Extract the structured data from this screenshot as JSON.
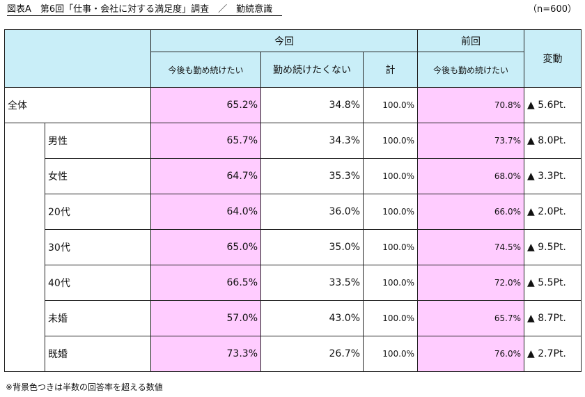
{
  "title": "図表A　第6回「仕事・会社に対する満足度」調査　／　勤続意識",
  "sample": "（n=600）",
  "header": {
    "current": "今回",
    "previous": "前回",
    "change": "変動",
    "col_continue": "今後も勤め続けたい",
    "col_not_continue": "勤め続けたくない",
    "col_total": "計",
    "col_prev_continue": "今後も勤め続けたい"
  },
  "rows": [
    {
      "label": "全体",
      "continue": "65.2%",
      "not_continue": "34.8%",
      "total": "100.0%",
      "prev": "70.8%",
      "change": "▲ 5.6Pt."
    },
    {
      "label": "男性",
      "continue": "65.7%",
      "not_continue": "34.3%",
      "total": "100.0%",
      "prev": "73.7%",
      "change": "▲ 8.0Pt."
    },
    {
      "label": "女性",
      "continue": "64.7%",
      "not_continue": "35.3%",
      "total": "100.0%",
      "prev": "68.0%",
      "change": "▲ 3.3Pt."
    },
    {
      "label": "20代",
      "continue": "64.0%",
      "not_continue": "36.0%",
      "total": "100.0%",
      "prev": "66.0%",
      "change": "▲ 2.0Pt."
    },
    {
      "label": "30代",
      "continue": "65.0%",
      "not_continue": "35.0%",
      "total": "100.0%",
      "prev": "74.5%",
      "change": "▲ 9.5Pt."
    },
    {
      "label": "40代",
      "continue": "66.5%",
      "not_continue": "33.5%",
      "total": "100.0%",
      "prev": "72.0%",
      "change": "▲ 5.5Pt."
    },
    {
      "label": "未婚",
      "continue": "57.0%",
      "not_continue": "43.0%",
      "total": "100.0%",
      "prev": "65.7%",
      "change": "▲ 8.7Pt."
    },
    {
      "label": "既婚",
      "continue": "73.3%",
      "not_continue": "26.7%",
      "total": "100.0%",
      "prev": "76.0%",
      "change": "▲ 2.7Pt."
    }
  ],
  "note": "※背景色つきは半数の回答率を超える数値",
  "colors": {
    "header_bg": "#c9eef8",
    "highlight_bg": "#ffccff"
  }
}
